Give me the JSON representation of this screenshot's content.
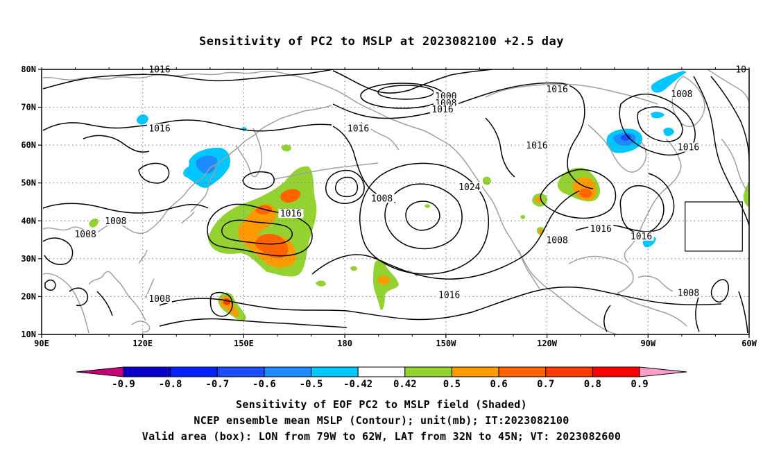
{
  "title": "Sensitivity of PC2 to MSLP at 2023082100 +2.5 day",
  "map": {
    "lon_range": [
      90,
      300
    ],
    "lat_range": [
      10,
      80
    ],
    "lon_ticks": [
      {
        "lon": 90,
        "label": "90E"
      },
      {
        "lon": 120,
        "label": "120E"
      },
      {
        "lon": 150,
        "label": "150E"
      },
      {
        "lon": 180,
        "label": "180"
      },
      {
        "lon": 210,
        "label": "150W"
      },
      {
        "lon": 240,
        "label": "120W"
      },
      {
        "lon": 270,
        "label": "90W"
      },
      {
        "lon": 300,
        "label": "60W"
      }
    ],
    "lat_ticks": [
      {
        "lat": 10,
        "label": "10N"
      },
      {
        "lat": 20,
        "label": "20N"
      },
      {
        "lat": 30,
        "label": "30N"
      },
      {
        "lat": 40,
        "label": "40N"
      },
      {
        "lat": 50,
        "label": "50N"
      },
      {
        "lat": 60,
        "label": "60N"
      },
      {
        "lat": 70,
        "label": "70N"
      },
      {
        "lat": 80,
        "label": "80N"
      }
    ],
    "gridlines": "dotted",
    "valid_box": {
      "lon_min": 281,
      "lon_max": 298,
      "lat_min": 32,
      "lat_max": 45
    },
    "contour_labels": [
      {
        "text": "1016",
        "lon": 125,
        "lat": 79.5
      },
      {
        "text": "1000",
        "lon": 210,
        "lat": 72.5
      },
      {
        "text": "1008",
        "lon": 210,
        "lat": 70.7
      },
      {
        "text": "1016",
        "lon": 209,
        "lat": 69
      },
      {
        "text": "1016",
        "lon": 243,
        "lat": 74.3
      },
      {
        "text": "1008",
        "lon": 280,
        "lat": 73
      },
      {
        "text": "10",
        "lon": 328,
        "lat": 79.5
      },
      {
        "text": "1016",
        "lon": 125,
        "lat": 64
      },
      {
        "text": "1016",
        "lon": 184,
        "lat": 64
      },
      {
        "text": "1016",
        "lon": 237,
        "lat": 59.5
      },
      {
        "text": "1016",
        "lon": 282,
        "lat": 59
      },
      {
        "text": "1024",
        "lon": 217,
        "lat": 48.5
      },
      {
        "text": "1008",
        "lon": 191,
        "lat": 45.5
      },
      {
        "text": "1016",
        "lon": 164,
        "lat": 41.5
      },
      {
        "text": "1008",
        "lon": 112,
        "lat": 39.5
      },
      {
        "text": "1008",
        "lon": 103,
        "lat": 36
      },
      {
        "text": "1016",
        "lon": 256,
        "lat": 37.5
      },
      {
        "text": "1008",
        "lon": 243,
        "lat": 34.5
      },
      {
        "text": "1016",
        "lon": 268,
        "lat": 35.5
      },
      {
        "text": "1016",
        "lon": 211,
        "lat": 20
      },
      {
        "text": "1008",
        "lon": 125,
        "lat": 19
      },
      {
        "text": "1008",
        "lon": 282,
        "lat": 20.5
      }
    ]
  },
  "colorbar": {
    "labels": [
      "-0.9",
      "-0.8",
      "-0.7",
      "-0.6",
      "-0.5",
      "-0.42",
      "0.42",
      "0.5",
      "0.6",
      "0.7",
      "0.8",
      "0.9"
    ],
    "colors": [
      "#0a00c8",
      "#0024ff",
      "#1c4dff",
      "#1c8bff",
      "#00c6ff",
      "#ffffff",
      "#94d232",
      "#ff9a00",
      "#ff6400",
      "#ff3a00",
      "#ff0000"
    ],
    "low_end_color": "#c8007a",
    "high_end_color": "#ff9ec8"
  },
  "captions": {
    "line1": "Sensitivity of EOF PC2 to MSLP field (Shaded)",
    "line2": "NCEP ensemble mean MSLP (Contour); unit(mb); IT:2023082100",
    "line3": "Valid area (box): LON from 79W to 62W, LAT from 32N to 45N; VT: 2023082600"
  }
}
